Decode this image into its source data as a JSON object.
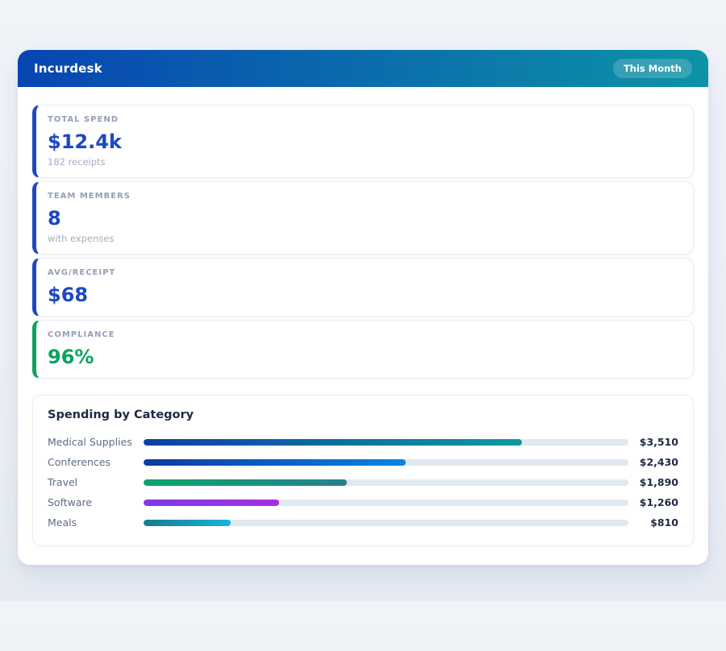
{
  "header": {
    "title": "Incurdesk",
    "badge": "This Month",
    "gradient_start": "#0845b2",
    "gradient_end": "#0d93a6"
  },
  "stats": [
    {
      "label": "TOTAL SPEND",
      "value": "$12.4k",
      "sub": "182 receipts",
      "accent": "#1c49c2",
      "value_color": "#1c49c2"
    },
    {
      "label": "TEAM MEMBERS",
      "value": "8",
      "sub": "with expenses",
      "accent": "#1c49c2",
      "value_color": "#1c49c2"
    },
    {
      "label": "AVG/RECEIPT",
      "value": "$68",
      "accent": "#1c49c2",
      "value_color": "#1c49c2"
    },
    {
      "label": "COMPLIANCE",
      "value": "96%",
      "accent": "#0ca35f",
      "value_color": "#0ca35f"
    }
  ],
  "categories": {
    "title": "Spending by Category",
    "scale_max": 4500,
    "track_color": "#e2e8f0",
    "rows": [
      {
        "label": "Medical Supplies",
        "value": "$3,510",
        "amount": 3510,
        "bar_from": "#0b3fa6",
        "bar_to": "#0f999f"
      },
      {
        "label": "Conferences",
        "value": "$2,430",
        "amount": 2430,
        "bar_from": "#0b3aa2",
        "bar_to": "#0a84e0"
      },
      {
        "label": "Travel",
        "value": "$1,890",
        "amount": 1890,
        "bar_from": "#0ba56a",
        "bar_to": "#27808f"
      },
      {
        "label": "Software",
        "value": "$1,260",
        "amount": 1260,
        "bar_from": "#7e3be8",
        "bar_to": "#a52fe0"
      },
      {
        "label": "Meals",
        "value": "$810",
        "amount": 810,
        "bar_from": "#187b90",
        "bar_to": "#15b5d8"
      }
    ]
  },
  "chart_data": {
    "type": "bar",
    "orientation": "horizontal",
    "title": "Spending by Category",
    "categories": [
      "Medical Supplies",
      "Conferences",
      "Travel",
      "Software",
      "Meals"
    ],
    "values": [
      3510,
      2430,
      1890,
      1260,
      810
    ],
    "value_labels": [
      "$3,510",
      "$2,430",
      "$1,890",
      "$1,260",
      "$810"
    ],
    "xlim": [
      0,
      4500
    ]
  }
}
